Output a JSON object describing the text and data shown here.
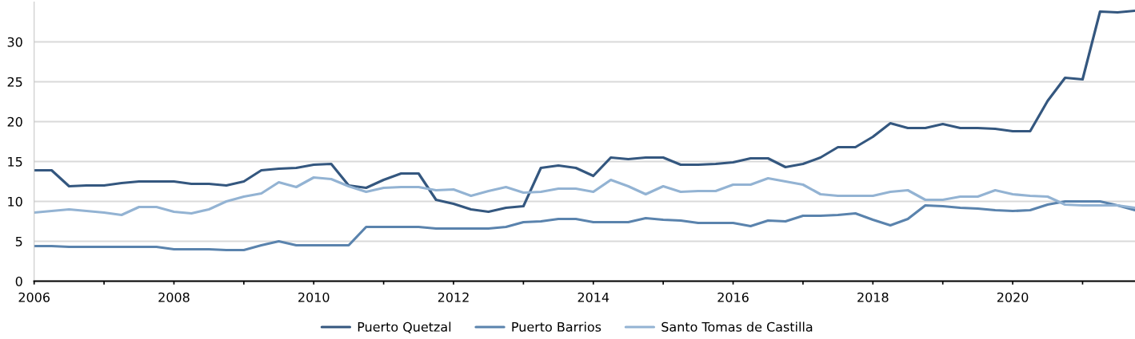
{
  "chart_data": {
    "type": "line",
    "x": [
      2006,
      2006.25,
      2006.5,
      2006.75,
      2007,
      2007.25,
      2007.5,
      2007.75,
      2008,
      2008.25,
      2008.5,
      2008.75,
      2009,
      2009.25,
      2009.5,
      2009.75,
      2010,
      2010.25,
      2010.5,
      2010.75,
      2011,
      2011.25,
      2011.5,
      2011.75,
      2012,
      2012.25,
      2012.5,
      2012.75,
      2013,
      2013.25,
      2013.5,
      2013.75,
      2014,
      2014.25,
      2014.5,
      2014.75,
      2015,
      2015.25,
      2015.5,
      2015.75,
      2016,
      2016.25,
      2016.5,
      2016.75,
      2017,
      2017.25,
      2017.5,
      2017.75,
      2018,
      2018.25,
      2018.5,
      2018.75,
      2019,
      2019.25,
      2019.5,
      2019.75,
      2020,
      2020.25,
      2020.5,
      2020.75,
      2021,
      2021.25,
      2021.5,
      2021.75
    ],
    "series": [
      {
        "name": "Puerto Quetzal",
        "color": "#34577f",
        "values": [
          13.9,
          13.9,
          11.9,
          12.0,
          12.0,
          12.3,
          12.5,
          12.5,
          12.5,
          12.2,
          12.2,
          12.0,
          12.5,
          13.9,
          14.1,
          14.2,
          14.6,
          14.7,
          12.0,
          11.7,
          12.7,
          13.5,
          13.5,
          10.2,
          9.7,
          9.0,
          8.7,
          9.2,
          9.4,
          14.2,
          14.5,
          14.2,
          13.2,
          15.5,
          15.3,
          15.5,
          15.5,
          14.6,
          14.6,
          14.7,
          14.9,
          15.4,
          15.4,
          14.3,
          14.7,
          15.5,
          16.8,
          16.8,
          18.1,
          19.8,
          19.2,
          19.2,
          19.7,
          19.2,
          19.2,
          19.1,
          18.8,
          18.8,
          22.6,
          25.5,
          25.3,
          33.8,
          33.7,
          33.9
        ]
      },
      {
        "name": "Puerto Barrios",
        "color": "#5a83ad",
        "values": [
          4.4,
          4.4,
          4.3,
          4.3,
          4.3,
          4.3,
          4.3,
          4.3,
          4.0,
          4.0,
          4.0,
          3.9,
          3.9,
          4.5,
          5.0,
          4.5,
          4.5,
          4.5,
          4.5,
          6.8,
          6.8,
          6.8,
          6.8,
          6.6,
          6.6,
          6.6,
          6.6,
          6.8,
          7.4,
          7.5,
          7.8,
          7.8,
          7.4,
          7.4,
          7.4,
          7.9,
          7.7,
          7.6,
          7.3,
          7.3,
          7.3,
          6.9,
          7.6,
          7.5,
          8.2,
          8.2,
          8.3,
          8.5,
          7.7,
          7.0,
          7.8,
          9.5,
          9.4,
          9.2,
          9.1,
          8.9,
          8.8,
          8.9,
          9.6,
          10.0,
          10.0,
          10.0,
          9.5,
          8.9
        ]
      },
      {
        "name": "Santo Tomas de Castilla",
        "color": "#93b3d3",
        "values": [
          8.6,
          8.8,
          9.0,
          8.8,
          8.6,
          8.3,
          9.3,
          9.3,
          8.7,
          8.5,
          9.0,
          10.0,
          10.6,
          11.0,
          12.4,
          11.8,
          13.0,
          12.8,
          11.9,
          11.2,
          11.7,
          11.8,
          11.8,
          11.4,
          11.5,
          10.7,
          11.3,
          11.8,
          11.1,
          11.2,
          11.6,
          11.6,
          11.2,
          12.7,
          11.9,
          10.9,
          11.9,
          11.2,
          11.3,
          11.3,
          12.1,
          12.1,
          12.9,
          12.5,
          12.1,
          10.9,
          10.7,
          10.7,
          10.7,
          11.2,
          11.4,
          10.2,
          10.2,
          10.6,
          10.6,
          11.4,
          10.9,
          10.7,
          10.6,
          9.6,
          9.5,
          9.5,
          9.5,
          9.2
        ]
      }
    ],
    "xlim": [
      2006,
      2021.75
    ],
    "xticks": [
      2006,
      {
        "value": 2007,
        "label": null
      },
      2008,
      {
        "value": 2009,
        "label": null
      },
      2010,
      {
        "value": 2011,
        "label": null
      },
      2012,
      {
        "value": 2013,
        "label": null
      },
      2014,
      {
        "value": 2015,
        "label": null
      },
      2016,
      {
        "value": 2017,
        "label": null
      },
      2018,
      {
        "value": 2019,
        "label": null
      },
      2020,
      {
        "value": 2021,
        "label": null
      }
    ],
    "ylim": [
      0,
      35
    ],
    "yticks": [
      0,
      5,
      10,
      15,
      20,
      25,
      30
    ],
    "grid": "y",
    "legend": "bottom",
    "marker": "none",
    "line_style": "solid"
  }
}
